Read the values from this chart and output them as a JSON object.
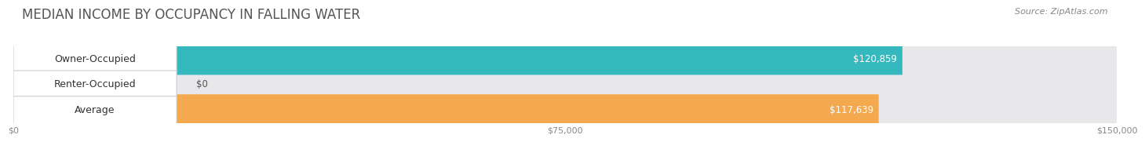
{
  "title": "MEDIAN INCOME BY OCCUPANCY IN FALLING WATER",
  "source": "Source: ZipAtlas.com",
  "categories": [
    "Owner-Occupied",
    "Renter-Occupied",
    "Average"
  ],
  "values": [
    120859,
    0,
    117639
  ],
  "bar_colors": [
    "#35b8be",
    "#c9a8d4",
    "#f5a94e"
  ],
  "value_labels": [
    "$120,859",
    "$0",
    "$117,639"
  ],
  "bg_color": "#e8e8ea",
  "xlim": [
    0,
    150000
  ],
  "xticks": [
    0,
    75000,
    150000
  ],
  "xtick_labels": [
    "$0",
    "$75,000",
    "$150,000"
  ],
  "background_color": "#ffffff",
  "bar_height": 0.62,
  "title_fontsize": 12,
  "source_fontsize": 8,
  "label_fontsize": 9,
  "value_fontsize": 8.5
}
